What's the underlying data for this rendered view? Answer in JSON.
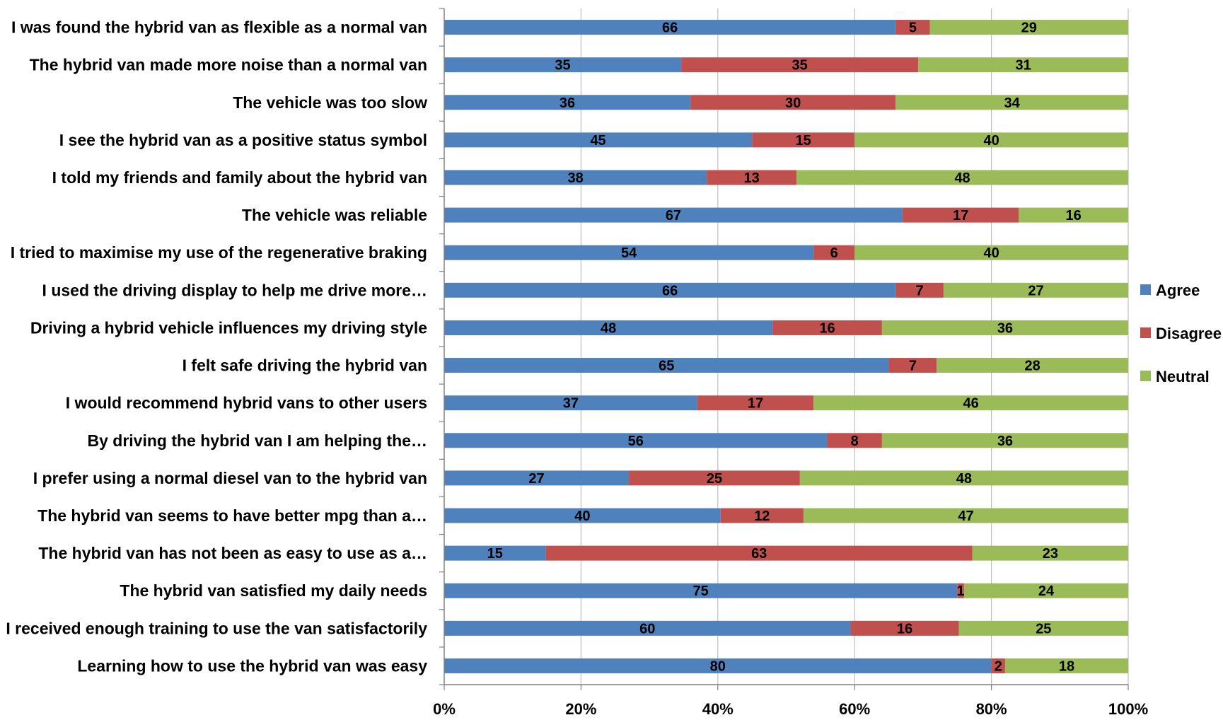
{
  "chart_data": {
    "type": "bar",
    "orientation": "horizontal",
    "stacked": "percent",
    "categories": [
      "I was found the hybrid van as flexible as a normal van",
      "The hybrid van made more noise than a normal van",
      "The vehicle was too slow",
      "I see the hybrid van as a positive status symbol",
      "I told my friends and family about the hybrid van",
      "The vehicle was reliable",
      "I tried to maximise my use of the regenerative braking",
      "I used the driving display to help me drive more…",
      "Driving a hybrid vehicle influences my driving style",
      "I felt safe driving the hybrid van",
      "I would recommend hybrid vans to other users",
      "By driving the hybrid van I am helping the…",
      "I prefer using a normal diesel van to the hybrid van",
      "The hybrid van seems to have better mpg than a…",
      "The hybrid van has not been as easy to use as a…",
      "The hybrid van satisfied my daily needs",
      "I received enough training to use the van satisfactorily",
      "Learning how to use the hybrid van was easy"
    ],
    "series": [
      {
        "name": "Agree",
        "color": "#4f81bd",
        "values": [
          66,
          35,
          36,
          45,
          38,
          67,
          54,
          66,
          48,
          65,
          37,
          56,
          27,
          40,
          15,
          75,
          60,
          80
        ]
      },
      {
        "name": "Disagree",
        "color": "#c0504d",
        "values": [
          5,
          35,
          30,
          15,
          13,
          17,
          6,
          7,
          16,
          7,
          17,
          8,
          25,
          12,
          63,
          1,
          16,
          2
        ]
      },
      {
        "name": "Neutral",
        "color": "#9bbb59",
        "values": [
          29,
          31,
          34,
          40,
          48,
          16,
          40,
          27,
          36,
          28,
          46,
          36,
          48,
          47,
          23,
          24,
          25,
          18
        ]
      }
    ],
    "x_ticks": [
      "0%",
      "20%",
      "40%",
      "60%",
      "80%",
      "100%"
    ],
    "xlim": [
      0,
      100
    ],
    "grid": true,
    "legend_position": "right",
    "title": "",
    "xlabel": "",
    "ylabel": ""
  }
}
